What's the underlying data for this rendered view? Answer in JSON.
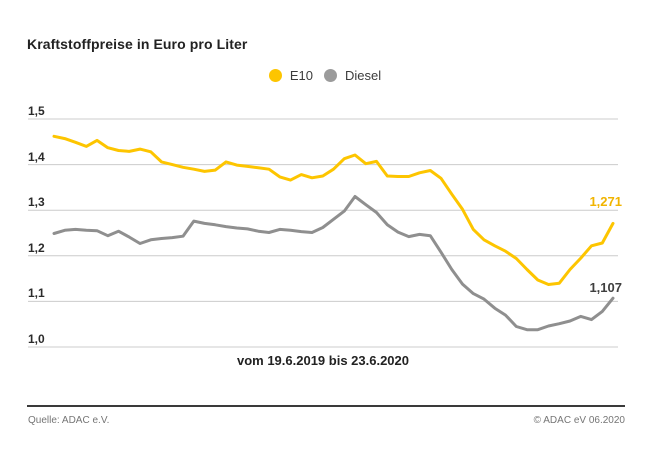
{
  "title": "Kraftstoffpreise in Euro pro Liter",
  "legend": {
    "items": [
      {
        "label": "E10",
        "color": "#FDC500"
      },
      {
        "label": "Diesel",
        "color": "#9B9B9B"
      }
    ]
  },
  "chart_data": {
    "type": "line",
    "title": "Kraftstoffpreise in Euro pro Liter",
    "x_caption": "vom 19.6.2019 bis 23.6.2020",
    "x_range": [
      "19.6.2019",
      "23.6.2020"
    ],
    "x_sampling": "weekly",
    "y_ticks": [
      "1,5",
      "1,4",
      "1,3",
      "1,2",
      "1,1",
      "1,0"
    ],
    "ylim": [
      1.0,
      1.5
    ],
    "grid": true,
    "legend_position": "top-center",
    "series": [
      {
        "name": "E10",
        "color": "#FDC500",
        "end_label": "1,271",
        "final_value": 1.271,
        "values": [
          1.462,
          1.457,
          1.449,
          1.44,
          1.453,
          1.437,
          1.431,
          1.429,
          1.434,
          1.428,
          1.406,
          1.4,
          1.394,
          1.39,
          1.385,
          1.388,
          1.406,
          1.399,
          1.396,
          1.393,
          1.39,
          1.373,
          1.366,
          1.378,
          1.371,
          1.375,
          1.39,
          1.413,
          1.421,
          1.402,
          1.407,
          1.375,
          1.374,
          1.374,
          1.382,
          1.387,
          1.37,
          1.335,
          1.302,
          1.258,
          1.235,
          1.222,
          1.21,
          1.194,
          1.17,
          1.147,
          1.137,
          1.14,
          1.17,
          1.195,
          1.222,
          1.228,
          1.271
        ]
      },
      {
        "name": "Diesel",
        "color": "#8F8F8F",
        "end_label": "1,107",
        "final_value": 1.107,
        "values": [
          1.249,
          1.256,
          1.258,
          1.256,
          1.255,
          1.244,
          1.254,
          1.241,
          1.227,
          1.235,
          1.238,
          1.24,
          1.243,
          1.276,
          1.271,
          1.268,
          1.264,
          1.261,
          1.259,
          1.254,
          1.251,
          1.258,
          1.256,
          1.253,
          1.251,
          1.262,
          1.28,
          1.298,
          1.33,
          1.312,
          1.295,
          1.268,
          1.252,
          1.242,
          1.247,
          1.244,
          1.208,
          1.17,
          1.138,
          1.117,
          1.105,
          1.085,
          1.07,
          1.045,
          1.038,
          1.038,
          1.046,
          1.051,
          1.057,
          1.067,
          1.06,
          1.078,
          1.107
        ]
      }
    ],
    "colors": {
      "gridline": "#CCCCCC",
      "e10_label": "#F1B400",
      "diesel_label": "#3F3F3F"
    }
  },
  "footer": {
    "source": "Quelle: ADAC e.V.",
    "copyright": "© ADAC eV 06.2020"
  }
}
